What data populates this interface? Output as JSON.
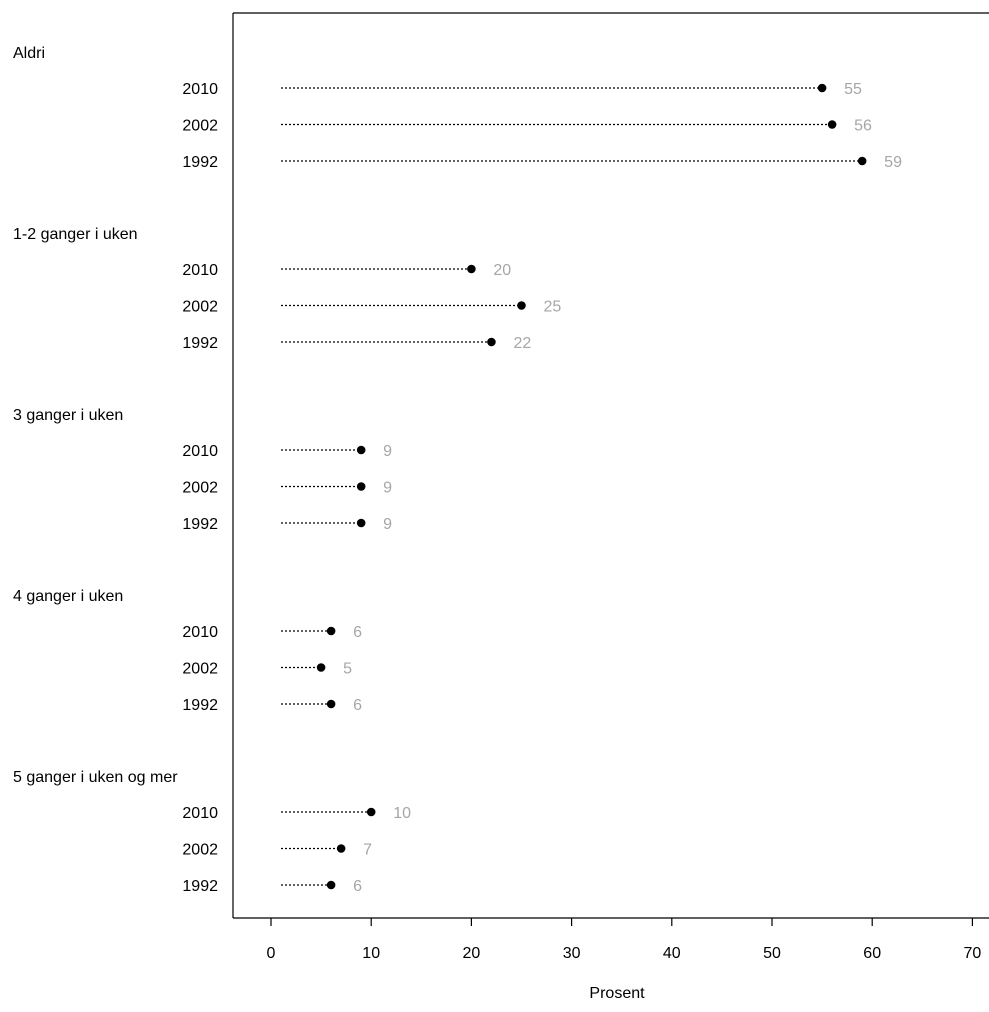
{
  "chart_data": {
    "type": "scatter",
    "xlabel": "Prosent",
    "xlim": [
      0,
      70
    ],
    "xticks": [
      0,
      10,
      20,
      30,
      40,
      50,
      60,
      70
    ],
    "groups": [
      {
        "label": "Aldri",
        "points": [
          {
            "year": "2010",
            "value": 55
          },
          {
            "year": "2002",
            "value": 56
          },
          {
            "year": "1992",
            "value": 59
          }
        ]
      },
      {
        "label": "1-2 ganger i uken",
        "points": [
          {
            "year": "2010",
            "value": 20
          },
          {
            "year": "2002",
            "value": 25
          },
          {
            "year": "1992",
            "value": 22
          }
        ]
      },
      {
        "label": "3 ganger i uken",
        "points": [
          {
            "year": "2010",
            "value": 9
          },
          {
            "year": "2002",
            "value": 9
          },
          {
            "year": "1992",
            "value": 9
          }
        ]
      },
      {
        "label": "4 ganger i uken",
        "points": [
          {
            "year": "2010",
            "value": 6
          },
          {
            "year": "2002",
            "value": 5
          },
          {
            "year": "1992",
            "value": 6
          }
        ]
      },
      {
        "label": "5 ganger i uken og mer",
        "points": [
          {
            "year": "2010",
            "value": 10
          },
          {
            "year": "2002",
            "value": 7
          },
          {
            "year": "1992",
            "value": 6
          }
        ]
      }
    ],
    "marker_color": "#000000",
    "value_label_color": "#a6a6a6",
    "grid": false
  }
}
